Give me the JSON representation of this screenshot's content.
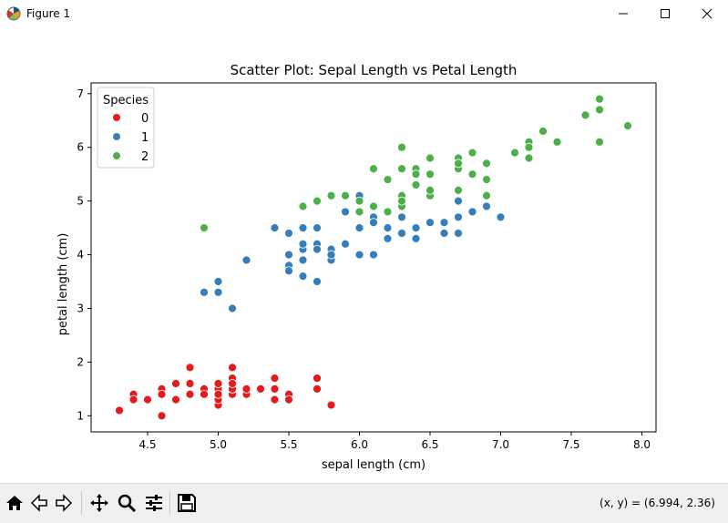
{
  "window": {
    "title": "Figure 1"
  },
  "toolbar": {
    "buttons": [
      "home-icon",
      "back-icon",
      "forward-icon",
      "pan-icon",
      "zoom-icon",
      "configure-subplots-icon",
      "save-icon"
    ],
    "coords": "(x, y) = (6.994, 2.36)"
  },
  "chart_data": {
    "type": "scatter",
    "title": "Scatter Plot: Sepal Length vs Petal Length",
    "xlabel": "sepal length (cm)",
    "ylabel": "petal length (cm)",
    "xlim": [
      4.1,
      8.1
    ],
    "ylim": [
      0.7,
      7.2
    ],
    "xticks": [
      4.5,
      5.0,
      5.5,
      6.0,
      6.5,
      7.0,
      7.5,
      8.0
    ],
    "yticks": [
      1,
      2,
      3,
      4,
      5,
      6,
      7
    ],
    "grid": false,
    "legend": {
      "title": "Species",
      "position": "upper-left"
    },
    "series": [
      {
        "name": "0",
        "color": "#e41a1c",
        "points": [
          [
            5.1,
            1.4
          ],
          [
            4.9,
            1.4
          ],
          [
            4.7,
            1.3
          ],
          [
            4.6,
            1.5
          ],
          [
            5.0,
            1.4
          ],
          [
            5.4,
            1.7
          ],
          [
            4.6,
            1.4
          ],
          [
            5.0,
            1.5
          ],
          [
            4.4,
            1.4
          ],
          [
            4.9,
            1.5
          ],
          [
            5.4,
            1.5
          ],
          [
            4.8,
            1.6
          ],
          [
            4.8,
            1.4
          ],
          [
            4.3,
            1.1
          ],
          [
            5.8,
            1.2
          ],
          [
            5.7,
            1.5
          ],
          [
            5.4,
            1.3
          ],
          [
            5.1,
            1.4
          ],
          [
            5.7,
            1.7
          ],
          [
            5.1,
            1.5
          ],
          [
            5.4,
            1.7
          ],
          [
            5.1,
            1.5
          ],
          [
            4.6,
            1.0
          ],
          [
            5.1,
            1.7
          ],
          [
            4.8,
            1.9
          ],
          [
            5.0,
            1.6
          ],
          [
            5.0,
            1.6
          ],
          [
            5.2,
            1.5
          ],
          [
            5.2,
            1.4
          ],
          [
            4.7,
            1.6
          ],
          [
            4.8,
            1.6
          ],
          [
            5.4,
            1.5
          ],
          [
            5.2,
            1.5
          ],
          [
            5.5,
            1.4
          ],
          [
            4.9,
            1.5
          ],
          [
            5.0,
            1.2
          ],
          [
            5.5,
            1.3
          ],
          [
            4.9,
            1.4
          ],
          [
            4.4,
            1.3
          ],
          [
            5.1,
            1.5
          ],
          [
            5.0,
            1.3
          ],
          [
            4.5,
            1.3
          ],
          [
            4.4,
            1.3
          ],
          [
            5.0,
            1.6
          ],
          [
            5.1,
            1.9
          ],
          [
            4.8,
            1.4
          ],
          [
            5.1,
            1.6
          ],
          [
            4.6,
            1.4
          ],
          [
            5.3,
            1.5
          ],
          [
            5.0,
            1.4
          ]
        ]
      },
      {
        "name": "1",
        "color": "#377eb8",
        "points": [
          [
            7.0,
            4.7
          ],
          [
            6.4,
            4.5
          ],
          [
            6.9,
            4.9
          ],
          [
            5.5,
            4.0
          ],
          [
            6.5,
            4.6
          ],
          [
            5.7,
            4.5
          ],
          [
            6.3,
            4.7
          ],
          [
            4.9,
            3.3
          ],
          [
            6.6,
            4.6
          ],
          [
            5.2,
            3.9
          ],
          [
            5.0,
            3.5
          ],
          [
            5.9,
            4.2
          ],
          [
            6.0,
            4.0
          ],
          [
            6.1,
            4.7
          ],
          [
            5.6,
            3.6
          ],
          [
            6.7,
            4.4
          ],
          [
            5.6,
            4.5
          ],
          [
            5.8,
            4.1
          ],
          [
            6.2,
            4.5
          ],
          [
            5.6,
            3.9
          ],
          [
            5.9,
            4.8
          ],
          [
            6.1,
            4.0
          ],
          [
            6.3,
            4.9
          ],
          [
            6.1,
            4.7
          ],
          [
            6.4,
            4.3
          ],
          [
            6.6,
            4.4
          ],
          [
            6.8,
            4.8
          ],
          [
            6.7,
            5.0
          ],
          [
            6.0,
            4.5
          ],
          [
            5.7,
            3.5
          ],
          [
            5.5,
            3.8
          ],
          [
            5.5,
            3.7
          ],
          [
            5.8,
            3.9
          ],
          [
            6.0,
            5.1
          ],
          [
            5.4,
            4.5
          ],
          [
            6.0,
            4.5
          ],
          [
            6.7,
            4.7
          ],
          [
            6.3,
            4.4
          ],
          [
            5.6,
            4.1
          ],
          [
            5.5,
            4.0
          ],
          [
            5.5,
            4.4
          ],
          [
            6.1,
            4.6
          ],
          [
            5.8,
            4.0
          ],
          [
            5.0,
            3.3
          ],
          [
            5.6,
            4.2
          ],
          [
            5.7,
            4.2
          ],
          [
            5.7,
            4.2
          ],
          [
            6.2,
            4.3
          ],
          [
            5.1,
            3.0
          ],
          [
            5.7,
            4.1
          ]
        ]
      },
      {
        "name": "2",
        "color": "#4daf4a",
        "points": [
          [
            6.3,
            6.0
          ],
          [
            5.8,
            5.1
          ],
          [
            7.1,
            5.9
          ],
          [
            6.3,
            5.6
          ],
          [
            6.5,
            5.8
          ],
          [
            7.6,
            6.6
          ],
          [
            4.9,
            4.5
          ],
          [
            7.3,
            6.3
          ],
          [
            6.7,
            5.8
          ],
          [
            7.2,
            6.1
          ],
          [
            6.5,
            5.1
          ],
          [
            6.4,
            5.3
          ],
          [
            6.8,
            5.5
          ],
          [
            5.7,
            5.0
          ],
          [
            5.8,
            5.1
          ],
          [
            6.4,
            5.3
          ],
          [
            6.5,
            5.5
          ],
          [
            7.7,
            6.7
          ],
          [
            7.7,
            6.9
          ],
          [
            6.0,
            5.0
          ],
          [
            6.9,
            5.7
          ],
          [
            5.6,
            4.9
          ],
          [
            7.7,
            6.7
          ],
          [
            6.3,
            4.9
          ],
          [
            6.7,
            5.7
          ],
          [
            7.2,
            6.0
          ],
          [
            6.2,
            4.8
          ],
          [
            6.1,
            4.9
          ],
          [
            6.4,
            5.6
          ],
          [
            7.2,
            5.8
          ],
          [
            7.4,
            6.1
          ],
          [
            7.9,
            6.4
          ],
          [
            6.4,
            5.6
          ],
          [
            6.3,
            5.1
          ],
          [
            6.1,
            5.6
          ],
          [
            7.7,
            6.1
          ],
          [
            6.3,
            5.6
          ],
          [
            6.4,
            5.5
          ],
          [
            6.0,
            4.8
          ],
          [
            6.9,
            5.4
          ],
          [
            6.7,
            5.6
          ],
          [
            6.9,
            5.1
          ],
          [
            5.8,
            5.1
          ],
          [
            6.8,
            5.9
          ],
          [
            6.7,
            5.7
          ],
          [
            6.7,
            5.2
          ],
          [
            6.3,
            5.0
          ],
          [
            6.5,
            5.2
          ],
          [
            6.2,
            5.4
          ],
          [
            5.9,
            5.1
          ]
        ]
      }
    ]
  }
}
